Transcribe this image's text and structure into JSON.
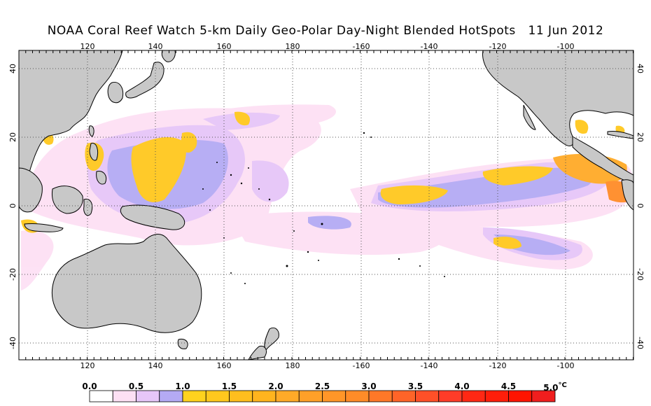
{
  "title": "NOAA Coral Reef Watch 5-km Daily Geo-Polar Day-Night Blended HotSpots",
  "date": "11 Jun 2012",
  "longitude_ticks": [
    "120",
    "140",
    "160",
    "180",
    "-160",
    "-140",
    "-120",
    "-100"
  ],
  "latitude_ticks": [
    "40",
    "20",
    "0",
    "-20",
    "-40"
  ],
  "colorbar": {
    "labels": [
      "0.0",
      "0.5",
      "1.0",
      "1.5",
      "2.0",
      "2.5",
      "3.0",
      "3.5",
      "4.0",
      "4.5",
      "5.0"
    ],
    "unit": "°C",
    "colors": [
      "#ffffff",
      "#fde0f4",
      "#e6c6f8",
      "#b4aaf4",
      "#ffd21e",
      "#ffc81e",
      "#ffbe1e",
      "#ffb41e",
      "#ffaa28",
      "#ffa028",
      "#ff9628",
      "#ff8c28",
      "#ff7828",
      "#ff6428",
      "#ff5028",
      "#ff3c28",
      "#ff2814",
      "#ff1e0a",
      "#ff1400",
      "#f01e1e"
    ]
  },
  "colors": {
    "land": "#c8c8c8",
    "coastline": "#000000",
    "grid": "#555555",
    "hotspot_low": "#fde0f4",
    "hotspot_mid": "#b4aaf4",
    "hotspot_high": "#ffc81e"
  }
}
